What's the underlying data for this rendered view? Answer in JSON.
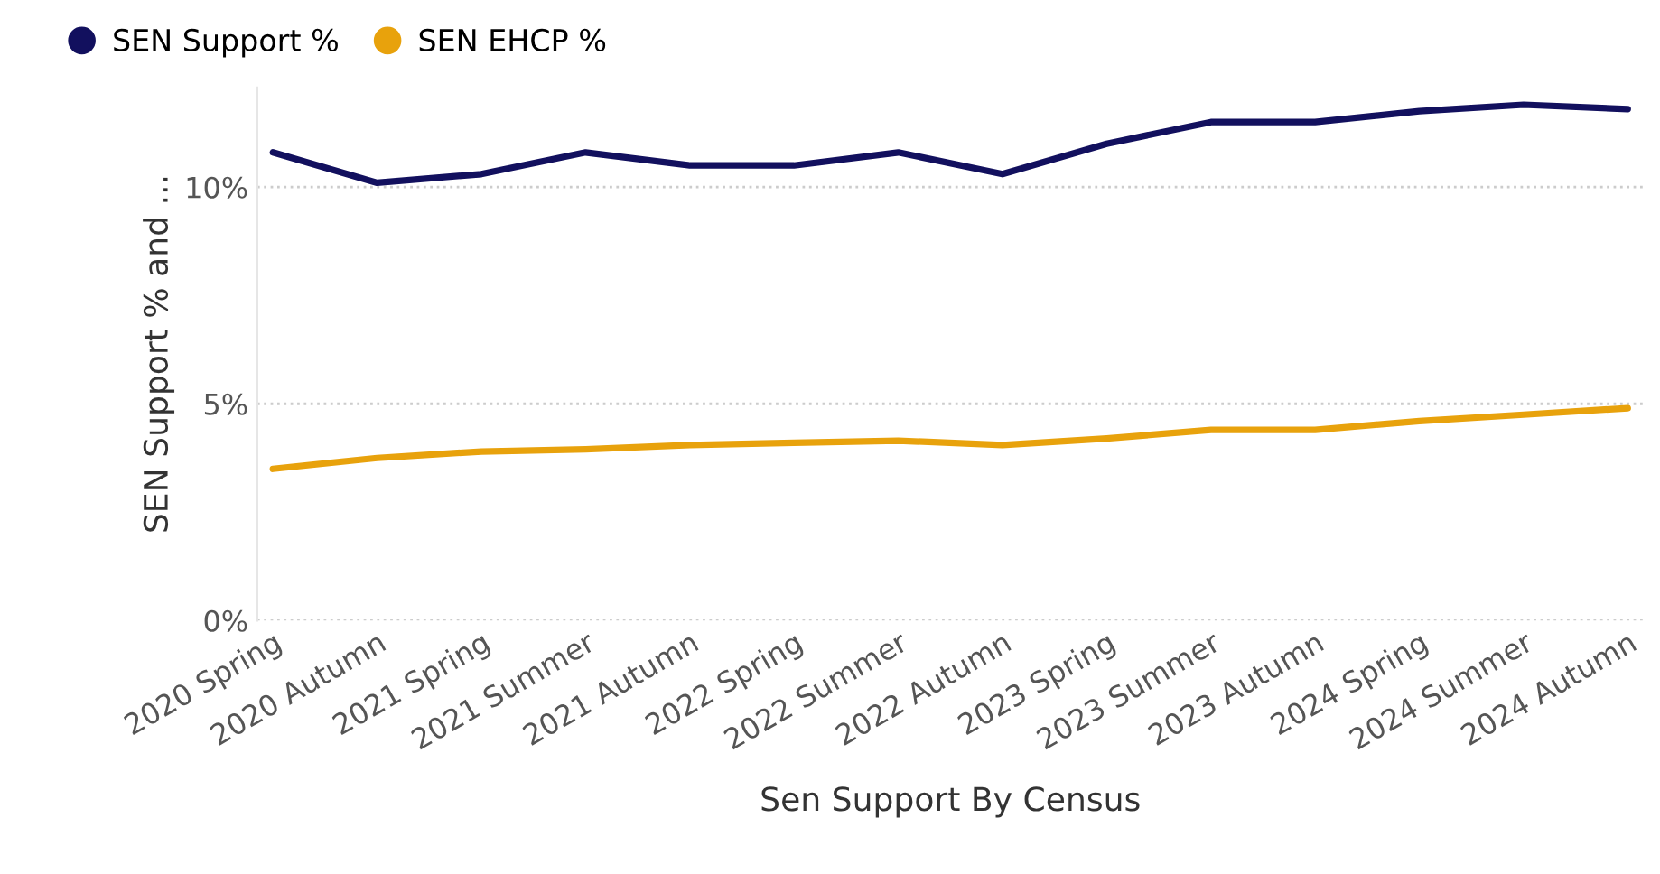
{
  "chart_data": {
    "type": "line",
    "xlabel": "Sen Support By Census",
    "ylabel": "SEN Support % and ...",
    "categories": [
      "2020 Spring",
      "2020 Autumn",
      "2021 Spring",
      "2021 Summer",
      "2021 Autumn",
      "2022 Spring",
      "2022 Summer",
      "2022 Autumn",
      "2023 Spring",
      "2023 Summer",
      "2023 Autumn",
      "2024 Spring",
      "2024 Summer",
      "2024 Autumn"
    ],
    "series": [
      {
        "name": "SEN Support %",
        "color": "#12105e",
        "values": [
          10.8,
          10.1,
          10.3,
          10.8,
          10.5,
          10.5,
          10.8,
          10.3,
          11.0,
          11.5,
          11.5,
          11.75,
          11.9,
          11.8
        ]
      },
      {
        "name": "SEN EHCP %",
        "color": "#e8a20c",
        "values": [
          3.5,
          3.75,
          3.9,
          3.95,
          4.05,
          4.1,
          4.15,
          4.05,
          4.2,
          4.4,
          4.4,
          4.6,
          4.75,
          4.9
        ]
      }
    ],
    "ylim": [
      0,
      12.3
    ],
    "yticks": [
      {
        "value": 0,
        "label": "0%"
      },
      {
        "value": 5,
        "label": "5%"
      },
      {
        "value": 10,
        "label": "10%"
      }
    ],
    "grid": "y",
    "legend": "top left",
    "marker": "none",
    "line_style": "solid"
  }
}
